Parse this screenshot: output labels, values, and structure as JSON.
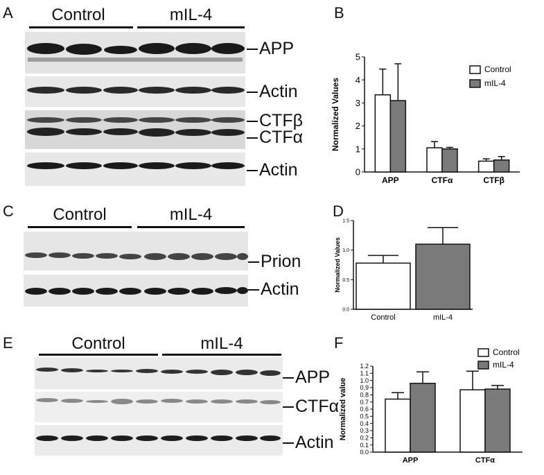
{
  "panels": {
    "A": {
      "letter": "A",
      "groups": [
        "Control",
        "mIL-4"
      ],
      "bands": [
        "APP",
        "Actin",
        "CTFβ",
        "CTFα",
        "Actin"
      ]
    },
    "B": {
      "letter": "B",
      "ylabel": "Normalized Values",
      "legend": [
        "Control",
        "mIL-4"
      ]
    },
    "C": {
      "letter": "C",
      "groups": [
        "Control",
        "mIL-4"
      ],
      "bands": [
        "Prion",
        "Actin"
      ]
    },
    "D": {
      "letter": "D",
      "ylabel": "Normalized Values"
    },
    "E": {
      "letter": "E",
      "groups": [
        "Control",
        "mIL-4"
      ],
      "bands": [
        "APP",
        "CTFα",
        "Actin"
      ]
    },
    "F": {
      "letter": "F",
      "ylabel": "Normalized value",
      "legend": [
        "Control",
        "mIL-4"
      ]
    }
  },
  "colors": {
    "control": "#ffffff",
    "mil4": "#7a7a7a",
    "axis": "#111111"
  },
  "chart_data": [
    {
      "panel": "B",
      "type": "bar",
      "categories": [
        "APP",
        "CTFα",
        "CTFβ"
      ],
      "series": [
        {
          "name": "Control",
          "values": [
            3.35,
            1.05,
            0.47
          ],
          "errors": [
            1.12,
            0.27,
            0.1
          ]
        },
        {
          "name": "mIL-4",
          "values": [
            3.1,
            1.0,
            0.52
          ],
          "errors": [
            1.6,
            0.07,
            0.15
          ]
        }
      ],
      "ylabel": "Normalized Values",
      "ylim": [
        0,
        5
      ],
      "yticks": [
        "0",
        "1",
        "2",
        "3",
        "4",
        "5"
      ],
      "legend_position": "top-right"
    },
    {
      "panel": "D",
      "type": "bar",
      "categories": [
        "Control",
        "mIL-4"
      ],
      "values": [
        0.78,
        1.1
      ],
      "errors": [
        0.13,
        0.28
      ],
      "ylabel": "Normalized Values",
      "ylim": [
        0,
        1.5
      ],
      "yticks": [
        "0.0",
        "0.5",
        "1.0",
        "1.5"
      ]
    },
    {
      "panel": "F",
      "type": "bar",
      "categories": [
        "APP",
        "CTFα"
      ],
      "series": [
        {
          "name": "Control",
          "values": [
            0.74,
            0.87
          ],
          "errors": [
            0.09,
            0.26
          ]
        },
        {
          "name": "mIL-4",
          "values": [
            0.96,
            0.88
          ],
          "errors": [
            0.16,
            0.05
          ]
        }
      ],
      "ylabel": "Normalized value",
      "ylim": [
        0,
        1.2
      ],
      "yticks": [
        "0.0",
        "0.1",
        "0.2",
        "0.3",
        "0.4",
        "0.5",
        "0.6",
        "0.7",
        "0.8",
        "0.9",
        "1.0",
        "1.1",
        "1.2"
      ],
      "legend_position": "top-right"
    }
  ]
}
